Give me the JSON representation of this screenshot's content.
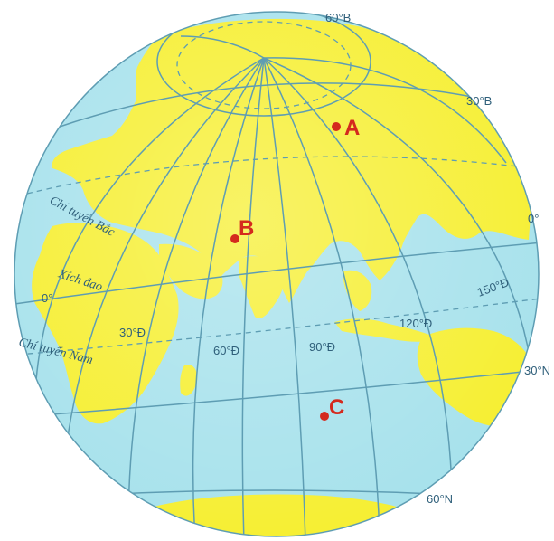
{
  "map": {
    "colors": {
      "ocean": "#a8e2ec",
      "land": "#f6ef34",
      "grid": "#5e9db3",
      "point": "#d42a1e",
      "label": "#2f5f7a"
    },
    "parallels": {
      "lat_60N": "60°B",
      "lat_30N": "30°B",
      "equator_deg": "0°",
      "lat_30S": "30°N",
      "lat_60S": "60°N"
    },
    "meridians": {
      "lon_0": "0°",
      "lon_30E": "30°Đ",
      "lon_60E": "60°Đ",
      "lon_90E": "90°Đ",
      "lon_120E": "120°Đ",
      "lon_150E": "150°Đ"
    },
    "lines": {
      "tropic_cancer": "Chí tuyến Bắc",
      "equator": "Xích đạo",
      "tropic_capricorn": "Chí tuyến Nam"
    },
    "points": [
      {
        "label": "A"
      },
      {
        "label": "B"
      },
      {
        "label": "C"
      }
    ]
  }
}
